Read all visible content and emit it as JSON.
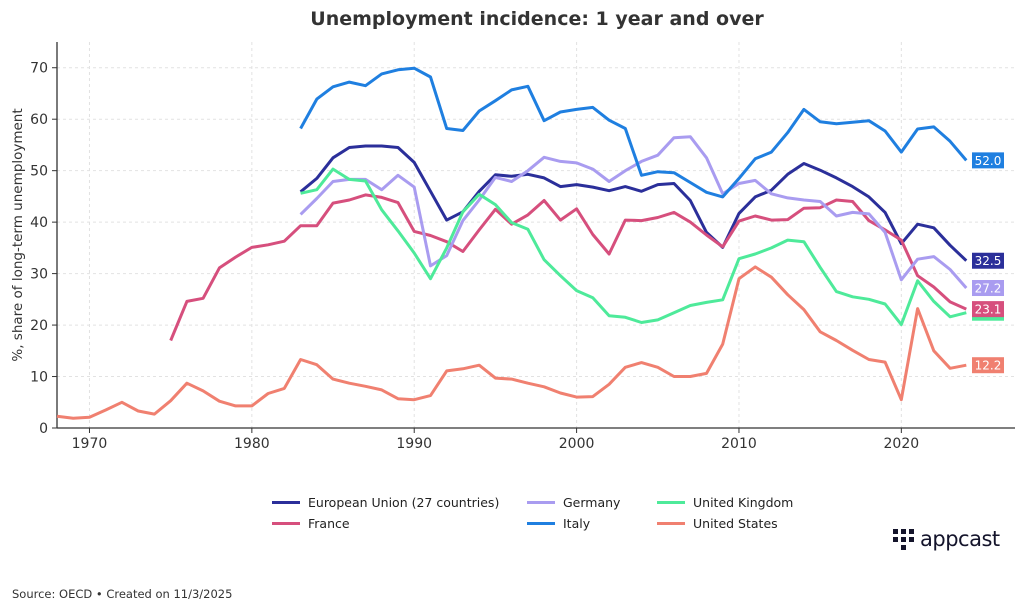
{
  "chart_data": {
    "type": "line",
    "title": "Unemployment incidence: 1 year and over",
    "xlabel": "",
    "ylabel": "%, share of long-term unemployment",
    "xlim": [
      1968,
      2027
    ],
    "ylim": [
      0,
      75
    ],
    "xticks": [
      1970,
      1980,
      1990,
      2000,
      2010,
      2020
    ],
    "yticks": [
      0,
      10,
      20,
      30,
      40,
      50,
      60,
      70
    ],
    "grid": true,
    "legend_placement": "bottom",
    "end_labels": true,
    "series": [
      {
        "name": "European Union (27 countries)",
        "color": "#2b2f9a",
        "start": 1983,
        "values": [
          45.9,
          48.5,
          52.5,
          54.5,
          54.8,
          54.8,
          54.5,
          51.6,
          46.0,
          40.4,
          42.0,
          46.0,
          49.2,
          48.9,
          49.3,
          48.6,
          46.9,
          47.3,
          46.8,
          46.1,
          46.9,
          46.0,
          47.3,
          47.5,
          44.2,
          38.0,
          35.1,
          41.7,
          44.9,
          46.2,
          49.3,
          51.4,
          50.1,
          48.6,
          46.9,
          44.9,
          41.9,
          35.8,
          39.6,
          38.9,
          35.5,
          32.5
        ],
        "end_label": "32.5"
      },
      {
        "name": "France",
        "color": "#d64f7d",
        "start": 1975,
        "values": [
          17.0,
          24.6,
          25.2,
          31.1,
          33.2,
          35.1,
          35.6,
          36.3,
          39.3,
          39.3,
          43.7,
          44.3,
          45.3,
          44.8,
          43.8,
          38.2,
          37.4,
          36.2,
          34.3,
          38.5,
          42.5,
          39.6,
          41.4,
          44.2,
          40.4,
          42.6,
          37.6,
          33.8,
          40.4,
          40.3,
          40.9,
          41.9,
          40.0,
          37.5,
          35.2,
          40.2,
          41.2,
          40.4,
          40.5,
          42.7,
          42.8,
          44.3,
          44.0,
          40.3,
          38.5,
          36.5,
          29.6,
          27.4,
          24.5,
          23.1
        ],
        "end_label": "23.1"
      },
      {
        "name": "Germany",
        "color": "#a99cf0",
        "start": 1983,
        "values": [
          41.5,
          44.6,
          47.9,
          48.3,
          48.3,
          46.3,
          49.1,
          46.8,
          31.5,
          33.5,
          40.3,
          44.3,
          48.7,
          47.9,
          50.0,
          52.6,
          51.8,
          51.5,
          50.3,
          47.9,
          50.0,
          51.8,
          53.0,
          56.4,
          56.6,
          52.5,
          45.5,
          47.5,
          48.1,
          45.5,
          44.7,
          44.3,
          44.0,
          41.2,
          41.9,
          41.6,
          38.0,
          28.8,
          32.8,
          33.3,
          30.8,
          27.2
        ],
        "end_label": "27.2"
      },
      {
        "name": "Italy",
        "color": "#1f7fe0",
        "start": 1983,
        "values": [
          58.2,
          63.9,
          66.3,
          67.2,
          66.5,
          68.8,
          69.6,
          69.9,
          68.2,
          58.2,
          57.8,
          61.6,
          63.6,
          65.7,
          66.4,
          59.7,
          61.4,
          61.9,
          62.3,
          59.8,
          58.2,
          49.1,
          49.8,
          49.6,
          47.7,
          45.8,
          44.9,
          48.5,
          52.3,
          53.6,
          57.4,
          61.9,
          59.5,
          59.1,
          59.4,
          59.7,
          57.7,
          53.6,
          58.1,
          58.5,
          55.7,
          52.0
        ],
        "end_label": "52.0"
      },
      {
        "name": "United Kingdom",
        "color": "#4eea9a",
        "start": 1983,
        "values": [
          45.6,
          46.3,
          50.3,
          48.3,
          48.0,
          42.4,
          38.3,
          34.0,
          29.0,
          35.0,
          42.0,
          45.4,
          43.4,
          39.9,
          38.6,
          32.7,
          29.6,
          26.7,
          25.3,
          21.8,
          21.5,
          20.5,
          21.0,
          22.4,
          23.8,
          24.4,
          24.9,
          32.9,
          33.8,
          35.0,
          36.5,
          36.2,
          31.2,
          26.5,
          25.5,
          25.0,
          24.1,
          20.1,
          28.6,
          24.6,
          21.6,
          22.4
        ],
        "end_label": ""
      },
      {
        "name": "United States",
        "color": "#f08070",
        "start": 1968,
        "values": [
          2.3,
          1.9,
          2.1,
          3.5,
          5.0,
          3.3,
          2.7,
          5.3,
          8.7,
          7.2,
          5.2,
          4.3,
          4.3,
          6.7,
          7.7,
          13.3,
          12.3,
          9.5,
          8.7,
          8.1,
          7.4,
          5.7,
          5.5,
          6.3,
          11.1,
          11.5,
          12.2,
          9.7,
          9.5,
          8.7,
          8.0,
          6.8,
          6.0,
          6.1,
          8.5,
          11.8,
          12.7,
          11.8,
          10.0,
          10.0,
          10.6,
          16.3,
          29.0,
          31.3,
          29.3,
          25.9,
          23.0,
          18.7,
          17.0,
          15.1,
          13.3,
          12.8,
          5.5,
          23.2,
          15.0,
          11.6,
          12.2
        ],
        "end_label": "12.2"
      }
    ]
  },
  "legend_order": [
    0,
    2,
    4,
    1,
    3,
    5
  ],
  "footer": {
    "source": "Source: OECD • Created on 11/3/2025"
  },
  "logo": {
    "text": "appcast"
  }
}
